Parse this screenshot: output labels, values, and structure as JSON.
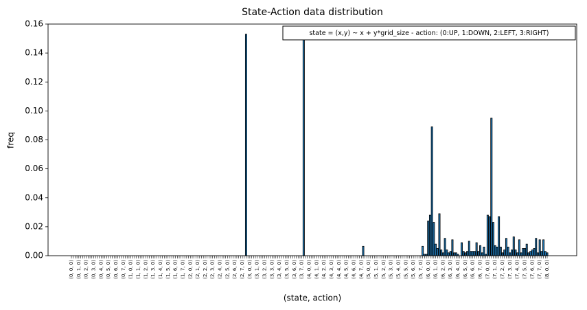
{
  "chart_data": {
    "type": "bar",
    "title": "State-Action data distribution",
    "xlabel": "(state, action)",
    "ylabel": "freq",
    "annotation": "state = (x,y) ~ x + y*grid_size  -  action: (0:UP, 1:DOWN, 2:LEFT, 3:RIGHT)",
    "color": "#1f77b4",
    "edgecolor": "#000000",
    "ylim": [
      0,
      0.16
    ],
    "yticks": [
      {
        "value": 0,
        "label": "0.00"
      },
      {
        "value": 0.02,
        "label": "0.02"
      },
      {
        "value": 0.04,
        "label": "0.04"
      },
      {
        "value": 0.06,
        "label": "0.06"
      },
      {
        "value": 0.08,
        "label": "0.08"
      },
      {
        "value": 0.1,
        "label": "0.10"
      },
      {
        "value": 0.12,
        "label": "0.12"
      },
      {
        "value": 0.14,
        "label": "0.14"
      },
      {
        "value": 0.16,
        "label": "0.16"
      }
    ],
    "categories": [
      "(0, 0, 0)",
      null,
      null,
      null,
      "(0, 1, 0)",
      null,
      null,
      null,
      "(0, 2, 0)",
      null,
      null,
      null,
      "(0, 3, 0)",
      null,
      null,
      null,
      "(0, 4, 0)",
      null,
      null,
      null,
      "(0, 5, 0)",
      null,
      null,
      null,
      "(0, 6, 0)",
      null,
      null,
      null,
      "(0, 7, 0)",
      null,
      null,
      null,
      "(1, 0, 0)",
      null,
      null,
      null,
      "(1, 1, 0)",
      null,
      null,
      null,
      "(1, 2, 0)",
      null,
      null,
      null,
      "(1, 3, 0)",
      null,
      null,
      null,
      "(1, 4, 0)",
      null,
      null,
      null,
      "(1, 5, 0)",
      null,
      null,
      null,
      "(1, 6, 0)",
      null,
      null,
      null,
      "(1, 7, 0)",
      null,
      null,
      null,
      "(2, 0, 0)",
      null,
      null,
      null,
      "(2, 1, 0)",
      null,
      null,
      null,
      "(2, 2, 0)",
      null,
      null,
      null,
      "(2, 3, 0)",
      null,
      null,
      null,
      "(2, 4, 0)",
      null,
      null,
      null,
      "(2, 5, 0)",
      null,
      null,
      null,
      "(2, 6, 0)",
      null,
      null,
      null,
      "(2, 7, 0)",
      null,
      null,
      null,
      "(3, 0, 0)",
      null,
      null,
      null,
      "(3, 1, 0)",
      null,
      null,
      null,
      "(3, 2, 0)",
      null,
      null,
      null,
      "(3, 3, 0)",
      null,
      null,
      null,
      "(3, 4, 0)",
      null,
      null,
      null,
      "(3, 5, 0)",
      null,
      null,
      null,
      "(3, 6, 0)",
      null,
      null,
      null,
      "(3, 7, 0)",
      null,
      null,
      null,
      "(4, 0, 0)",
      null,
      null,
      null,
      "(4, 1, 0)",
      null,
      null,
      null,
      "(4, 2, 0)",
      null,
      null,
      null,
      "(4, 3, 0)",
      null,
      null,
      null,
      "(4, 4, 0)",
      null,
      null,
      null,
      "(4, 5, 0)",
      null,
      null,
      null,
      "(4, 6, 0)",
      null,
      null,
      null,
      "(4, 7, 0)",
      null,
      null,
      null,
      "(5, 0, 0)",
      null,
      null,
      null,
      "(5, 1, 0)",
      null,
      null,
      null,
      "(5, 2, 0)",
      null,
      null,
      null,
      "(5, 3, 0)",
      null,
      null,
      null,
      "(5, 4, 0)",
      null,
      null,
      null,
      "(5, 5, 0)",
      null,
      null,
      null,
      "(5, 6, 0)",
      null,
      null,
      null,
      "(5, 7, 0)",
      null,
      null,
      null,
      "(6, 0, 0)",
      null,
      null,
      null,
      "(6, 1, 0)",
      null,
      null,
      null,
      "(6, 2, 0)",
      null,
      null,
      null,
      "(6, 3, 0)",
      null,
      null,
      null,
      "(6, 4, 0)",
      null,
      null,
      null,
      "(6, 5, 0)",
      null,
      null,
      null,
      "(6, 6, 0)",
      null,
      null,
      null,
      "(6, 7, 0)",
      null,
      null,
      null,
      "(7, 0, 0)",
      null,
      null,
      null,
      "(7, 1, 0)",
      null,
      null,
      null,
      "(7, 2, 0)",
      null,
      null,
      null,
      "(7, 3, 0)",
      null,
      null,
      null,
      "(7, 4, 0)",
      null,
      null,
      null,
      "(7, 5, 0)",
      null,
      null,
      null,
      "(7, 6, 0)",
      null,
      null,
      null,
      "(7, 7, 0)",
      null,
      null,
      null,
      "(8, 0, 0)"
    ],
    "values": [
      0,
      0,
      0,
      0,
      0,
      0,
      0,
      0,
      0,
      0,
      0,
      0,
      0,
      0,
      0,
      0,
      0,
      0,
      0,
      0,
      0,
      0,
      0,
      0,
      0,
      0,
      0,
      0,
      0,
      0,
      0,
      0,
      0,
      0,
      0,
      0,
      0,
      0,
      0,
      0,
      0,
      0,
      0,
      0,
      0,
      0,
      0,
      0,
      0,
      0,
      0,
      0,
      0,
      0,
      0,
      0,
      0,
      0,
      0,
      0,
      0,
      0,
      0,
      0,
      0,
      0,
      0,
      0,
      0,
      0,
      0,
      0,
      0,
      0,
      0,
      0,
      0,
      0,
      0,
      0,
      0,
      0,
      0,
      0,
      0,
      0,
      0,
      0,
      0,
      0,
      0,
      0,
      0,
      0,
      0.153,
      0,
      0,
      0,
      0,
      0,
      0,
      0,
      0,
      0,
      0,
      0,
      0,
      0,
      0,
      0,
      0,
      0,
      0,
      0,
      0,
      0,
      0,
      0,
      0,
      0,
      0,
      0,
      0,
      0,
      0,
      0.15,
      0,
      0,
      0,
      0,
      0,
      0,
      0,
      0,
      0,
      0,
      0,
      0,
      0,
      0,
      0,
      0,
      0,
      0,
      0,
      0,
      0,
      0,
      0,
      0,
      0,
      0,
      0,
      0,
      0,
      0,
      0,
      0.0065,
      0,
      0,
      0,
      0,
      0,
      0,
      0,
      0,
      0,
      0,
      0,
      0,
      0,
      0,
      0,
      0,
      0,
      0,
      0,
      0,
      0,
      0,
      0,
      0,
      0,
      0,
      0,
      0,
      0,
      0,
      0,
      0.0065,
      0.001,
      0.001,
      0.024,
      0.028,
      0.089,
      0.023,
      0.008,
      0.005,
      0.029,
      0.004,
      0.002,
      0.012,
      0.004,
      0.002,
      0.003,
      0.011,
      0.002,
      0.002,
      0.001,
      0,
      0.009,
      0.003,
      0.002,
      0.003,
      0.01,
      0.003,
      0.003,
      0.003,
      0.009,
      0.003,
      0.007,
      0.002,
      0.006,
      0.001,
      0.028,
      0.027,
      0.095,
      0.023,
      0.007,
      0.006,
      0.027,
      0.006,
      0.002,
      0.004,
      0.012,
      0.006,
      0.002,
      0.004,
      0.013,
      0.004,
      0.002,
      0.011,
      0.002,
      0.005,
      0.005,
      0.008,
      0.002,
      0.003,
      0.004,
      0.005,
      0.012,
      0.002,
      0.011,
      0.003,
      0.011,
      0.003,
      0.002
    ]
  }
}
